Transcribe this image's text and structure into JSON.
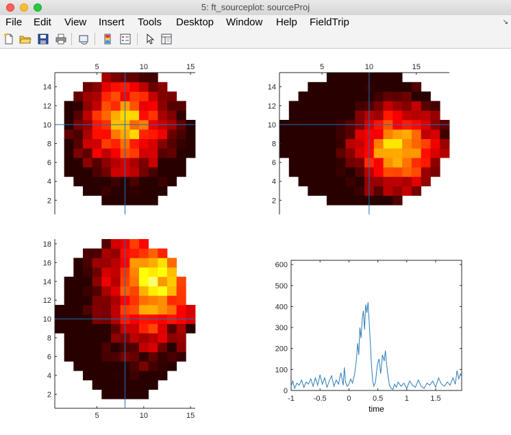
{
  "window": {
    "title": "5: ft_sourceplot: sourceProj"
  },
  "menu": {
    "items": [
      "File",
      "Edit",
      "View",
      "Insert",
      "Tools",
      "Desktop",
      "Window",
      "Help",
      "FieldTrip"
    ],
    "overflow_icon": "chevron-down-icon"
  },
  "toolbar": {
    "icons": [
      "new-figure-icon",
      "open-file-icon",
      "save-icon",
      "print-icon",
      "link-plot-icon",
      "colorbar-icon",
      "legend-icon",
      "pointer-icon",
      "property-inspector-icon"
    ]
  },
  "colors": {
    "trace": "#2a7ab8",
    "crosshair": "#1f6fb0"
  },
  "slice_panels": [
    {
      "name": "slice-top-left",
      "x_ticks": [
        "5",
        "10",
        "15"
      ],
      "x_tick_values": [
        5,
        10,
        15
      ],
      "y_ticks": [
        "2",
        "4",
        "6",
        "8",
        "10",
        "12",
        "14"
      ],
      "y_tick_values": [
        2,
        4,
        6,
        8,
        10,
        12,
        14
      ],
      "x_axis_position": "top",
      "crosshair": [
        8,
        10
      ]
    },
    {
      "name": "slice-top-right",
      "x_ticks": [
        "5",
        "10",
        "15"
      ],
      "x_tick_values": [
        5,
        10,
        15
      ],
      "y_ticks": [
        "2",
        "4",
        "6",
        "8",
        "10",
        "12",
        "14"
      ],
      "y_tick_values": [
        2,
        4,
        6,
        8,
        10,
        12,
        14
      ],
      "x_axis_position": "top",
      "crosshair": [
        10,
        10
      ]
    },
    {
      "name": "slice-bottom-left",
      "x_ticks": [
        "5",
        "10",
        "15"
      ],
      "x_tick_values": [
        5,
        10,
        15
      ],
      "y_ticks": [
        "2",
        "4",
        "6",
        "8",
        "10",
        "12",
        "14",
        "16",
        "18"
      ],
      "y_tick_values": [
        2,
        4,
        6,
        8,
        10,
        12,
        14,
        16,
        18
      ],
      "x_axis_position": "bottom",
      "crosshair": [
        8,
        10
      ]
    }
  ],
  "chart_data": {
    "type": "line",
    "title": "",
    "xlabel": "time",
    "ylabel": "",
    "xlim": [
      -1,
      1.95
    ],
    "ylim": [
      0,
      620
    ],
    "x_ticks": [
      "-1",
      "-0.5",
      "0",
      "0.5",
      "1",
      "1.5"
    ],
    "x_tick_values": [
      -1,
      -0.5,
      0,
      0.5,
      1,
      1.5
    ],
    "y_ticks": [
      "0",
      "100",
      "200",
      "300",
      "400",
      "500",
      "600"
    ],
    "y_tick_values": [
      0,
      100,
      200,
      300,
      400,
      500,
      600
    ],
    "grid": false,
    "series": [
      {
        "x": [
          -1.0,
          -0.97,
          -0.94,
          -0.9,
          -0.86,
          -0.82,
          -0.78,
          -0.74,
          -0.7,
          -0.66,
          -0.62,
          -0.58,
          -0.54,
          -0.5,
          -0.46,
          -0.42,
          -0.38,
          -0.34,
          -0.3,
          -0.26,
          -0.22,
          -0.18,
          -0.14,
          -0.1,
          -0.08,
          -0.06,
          -0.03,
          0.0,
          0.03,
          0.06,
          0.1,
          0.13,
          0.15,
          0.17,
          0.19,
          0.21,
          0.23,
          0.25,
          0.27,
          0.29,
          0.31,
          0.33,
          0.35,
          0.37,
          0.39,
          0.41,
          0.43,
          0.46,
          0.49,
          0.52,
          0.55,
          0.58,
          0.61,
          0.63,
          0.65,
          0.67,
          0.7,
          0.73,
          0.76,
          0.79,
          0.82,
          0.85,
          0.9,
          0.95,
          1.0,
          1.05,
          1.1,
          1.15,
          1.2,
          1.25,
          1.3,
          1.35,
          1.4,
          1.45,
          1.5,
          1.55,
          1.6,
          1.65,
          1.7,
          1.75,
          1.8,
          1.84,
          1.87,
          1.9,
          1.93,
          1.95
        ],
        "y": [
          20,
          45,
          10,
          35,
          25,
          50,
          15,
          40,
          30,
          55,
          20,
          60,
          25,
          75,
          30,
          60,
          15,
          45,
          70,
          20,
          50,
          30,
          85,
          25,
          110,
          40,
          20,
          30,
          55,
          35,
          80,
          150,
          225,
          170,
          300,
          250,
          340,
          380,
          290,
          410,
          370,
          420,
          330,
          230,
          120,
          50,
          20,
          40,
          120,
          150,
          80,
          170,
          140,
          190,
          130,
          80,
          25,
          10,
          5,
          30,
          15,
          40,
          20,
          35,
          10,
          45,
          25,
          15,
          50,
          20,
          10,
          35,
          25,
          45,
          15,
          60,
          30,
          20,
          40,
          25,
          60,
          30,
          95,
          55,
          80,
          65
        ]
      }
    ]
  }
}
